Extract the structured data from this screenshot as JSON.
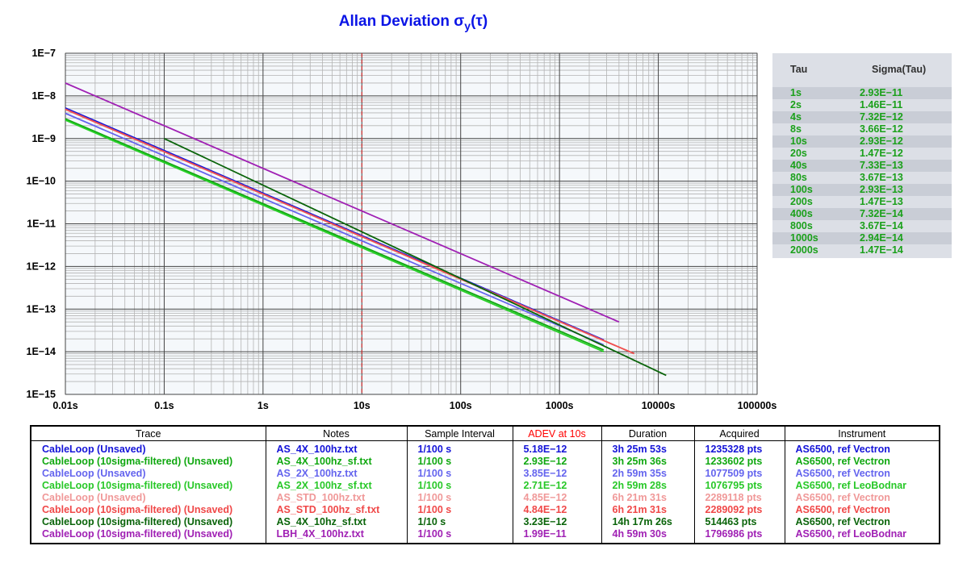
{
  "chart_data": {
    "type": "line",
    "title_main": "Allan Deviation σ",
    "title_sub": "y",
    "title_end": "(τ)",
    "x_scale": "log",
    "y_scale": "log",
    "xlim": [
      0.01,
      100000
    ],
    "ylim": [
      1e-15,
      1e-07
    ],
    "x_ticks": [
      0.01,
      0.1,
      1,
      10,
      100,
      1000,
      10000,
      100000
    ],
    "x_tick_labels": [
      "0.01s",
      "0.1s",
      "1s",
      "10s",
      "100s",
      "1000s",
      "10000s",
      "100000s"
    ],
    "y_ticks": [
      1e-15,
      1e-14,
      1e-13,
      1e-12,
      1e-11,
      1e-10,
      1e-09,
      1e-08,
      1e-07
    ],
    "y_tick_labels": [
      "1E−15",
      "1E−14",
      "1E−13",
      "1E−12",
      "1E−11",
      "1E−10",
      "1E−9",
      "1E−8",
      "1E−7"
    ],
    "grid": true,
    "marker_x": 10,
    "marker_color": "#e02020",
    "series": [
      {
        "x": [
          0.01,
          2800
        ],
        "y": [
          5.2e-09,
          1.9e-14
        ],
        "color": "#1414d8"
      },
      {
        "x": [
          0.01,
          2800
        ],
        "y": [
          2.9e-09,
          1.1e-14
        ],
        "color": "#10a810"
      },
      {
        "x": [
          0.01,
          2800
        ],
        "y": [
          3.9e-09,
          1.45e-14
        ],
        "color": "#6464ee"
      },
      {
        "x": [
          0.01,
          2800
        ],
        "y": [
          2.7e-09,
          1e-14
        ],
        "color": "#28d028"
      },
      {
        "x": [
          0.01,
          5700
        ],
        "y": [
          4.85e-09,
          9e-15
        ],
        "color": "#f0a0a0"
      },
      {
        "x": [
          0.01,
          5700
        ],
        "y": [
          4.84e-09,
          9e-15
        ],
        "color": "#f05050"
      },
      {
        "x": [
          0.1,
          12000
        ],
        "y": [
          1e-09,
          2.8e-15
        ],
        "color": "#0a640a"
      },
      {
        "x": [
          0.01,
          4000
        ],
        "y": [
          2e-08,
          5e-14
        ],
        "color": "#a020b4"
      }
    ]
  },
  "tau_table": {
    "header_tau": "Tau",
    "header_sigma": "Sigma(Tau)",
    "rows": [
      {
        "tau": "1s",
        "sigma": "2.93E−11"
      },
      {
        "tau": "2s",
        "sigma": "1.46E−11"
      },
      {
        "tau": "4s",
        "sigma": "7.32E−12"
      },
      {
        "tau": "8s",
        "sigma": "3.66E−12"
      },
      {
        "tau": "10s",
        "sigma": "2.93E−12"
      },
      {
        "tau": "20s",
        "sigma": "1.47E−12"
      },
      {
        "tau": "40s",
        "sigma": "7.33E−13"
      },
      {
        "tau": "80s",
        "sigma": "3.67E−13"
      },
      {
        "tau": "100s",
        "sigma": "2.93E−13"
      },
      {
        "tau": "200s",
        "sigma": "1.47E−13"
      },
      {
        "tau": "400s",
        "sigma": "7.32E−14"
      },
      {
        "tau": "800s",
        "sigma": "3.67E−14"
      },
      {
        "tau": "1000s",
        "sigma": "2.94E−14"
      },
      {
        "tau": "2000s",
        "sigma": "1.47E−14"
      }
    ]
  },
  "legend": {
    "headers": [
      "Trace",
      "Notes",
      "Sample Interval",
      "ADEV at 10s",
      "Duration",
      "Acquired",
      "Instrument"
    ],
    "adev_header_color": "#ff0000",
    "rows": [
      {
        "trace": "CableLoop (Unsaved)",
        "notes": "AS_4X_100hz.txt",
        "interval": "1/100 s",
        "adev": "5.18E−12",
        "duration": "3h 25m 53s",
        "acquired": "1235328 pts",
        "instrument": "AS6500, ref Vectron",
        "color": "#1414d8"
      },
      {
        "trace": "CableLoop (10sigma-filtered) (Unsaved)",
        "notes": "AS_4X_100hz_sf.txt",
        "interval": "1/100 s",
        "adev": "2.93E−12",
        "duration": "3h 25m 36s",
        "acquired": "1233602 pts",
        "instrument": "AS6500, ref Vectron",
        "color": "#10a810"
      },
      {
        "trace": "CableLoop (Unsaved)",
        "notes": "AS_2X_100hz.txt",
        "interval": "1/100 s",
        "adev": "3.85E−12",
        "duration": "2h 59m 35s",
        "acquired": "1077509 pts",
        "instrument": "AS6500, ref Vectron",
        "color": "#6464ee"
      },
      {
        "trace": "CableLoop (10sigma-filtered) (Unsaved)",
        "notes": "AS_2X_100hz_sf.txt",
        "interval": "1/100 s",
        "adev": "2.71E−12",
        "duration": "2h 59m 28s",
        "acquired": "1076795 pts",
        "instrument": "AS6500, ref LeoBodnar",
        "color": "#28c828"
      },
      {
        "trace": "CableLoop (Unsaved)",
        "notes": "AS_STD_100hz.txt",
        "interval": "1/100 s",
        "adev": "4.85E−12",
        "duration": "6h 21m 31s",
        "acquired": "2289118 pts",
        "instrument": "AS6500, ref Vectron",
        "color": "#f09898"
      },
      {
        "trace": "CableLoop (10sigma-filtered) (Unsaved)",
        "notes": "AS_STD_100hz_sf.txt",
        "interval": "1/100 s",
        "adev": "4.84E−12",
        "duration": "6h 21m 31s",
        "acquired": "2289092 pts",
        "instrument": "AS6500, ref Vectron",
        "color": "#f04848"
      },
      {
        "trace": "CableLoop (10sigma-filtered) (Unsaved)",
        "notes": "AS_4X_10hz_sf.txt",
        "interval": "1/10 s",
        "adev": "3.23E−12",
        "duration": "14h 17m 26s",
        "acquired": "514463 pts",
        "instrument": "AS6500, ref Vectron",
        "color": "#0a640a"
      },
      {
        "trace": "CableLoop (10sigma-filtered) (Unsaved)",
        "notes": "LBH_4X_100hz.txt",
        "interval": "1/100 s",
        "adev": "1.99E−11",
        "duration": "4h 59m 30s",
        "acquired": "1796986 pts",
        "instrument": "AS6500, ref LeoBodnar",
        "color": "#a020b4"
      }
    ]
  }
}
